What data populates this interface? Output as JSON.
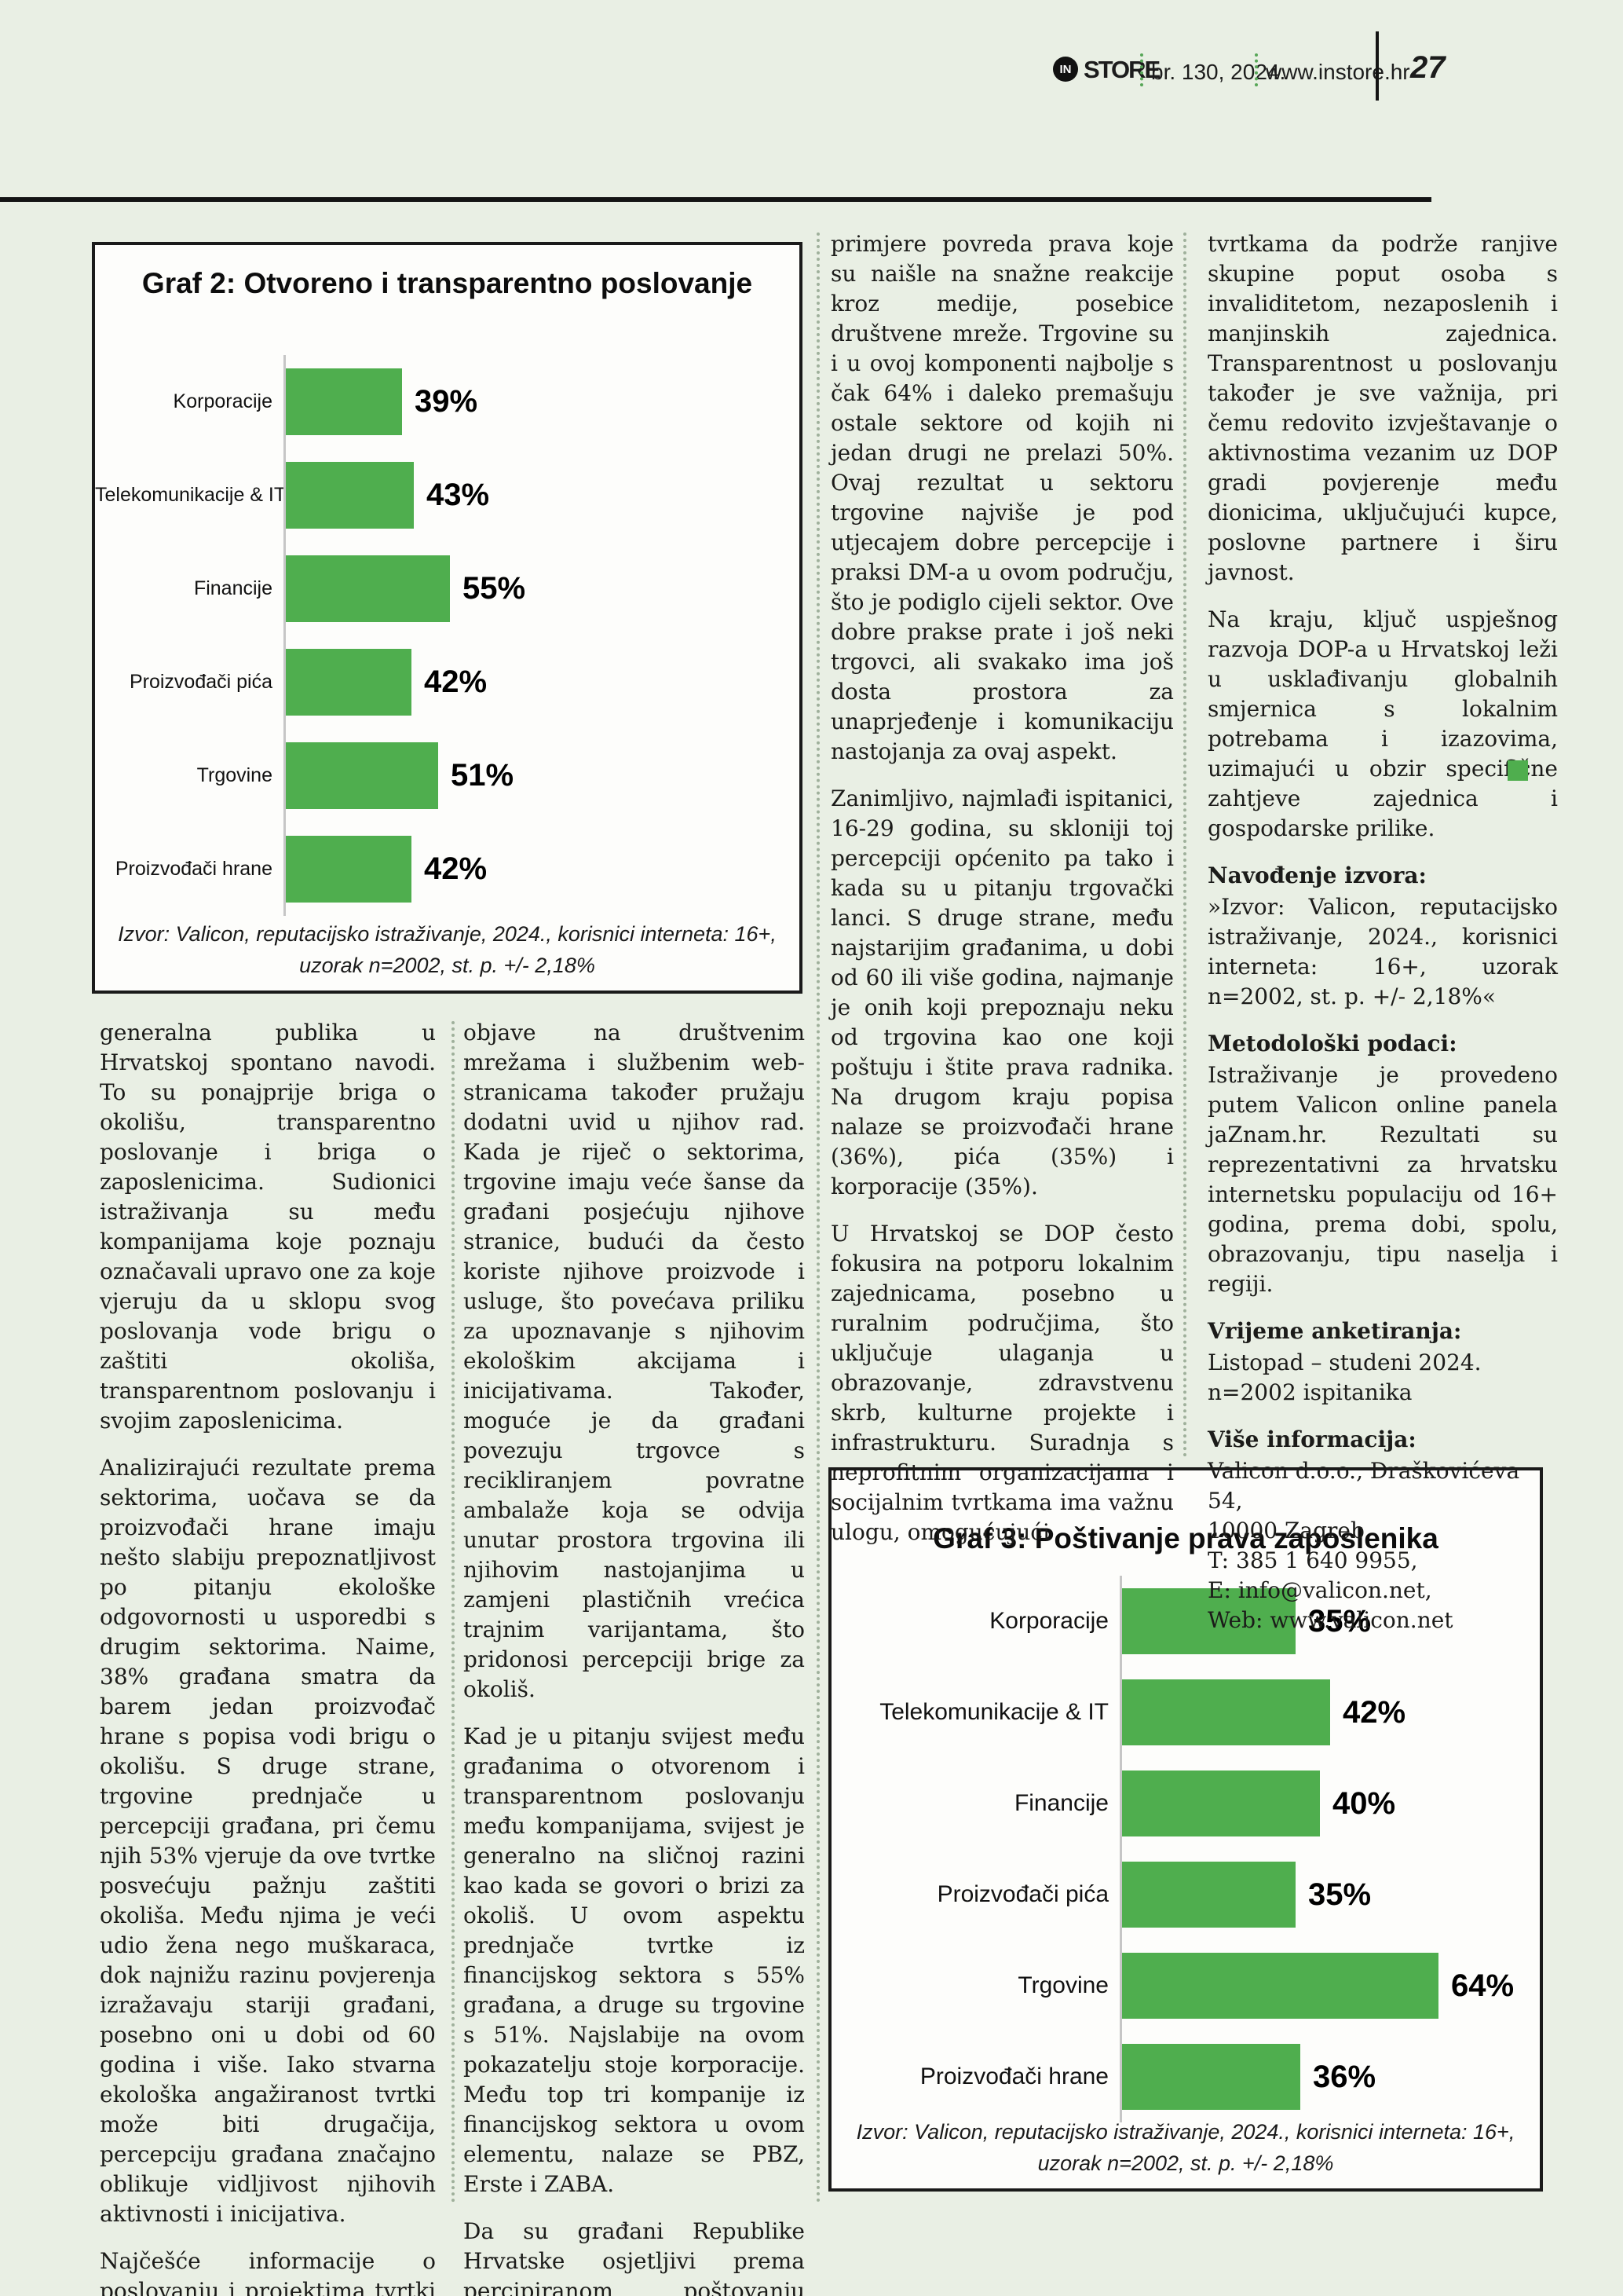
{
  "page": {
    "background": "#e9efe4",
    "accent_green": "#4fae4e",
    "rule_color": "#141414"
  },
  "header": {
    "logo_badge": "IN",
    "logo_text": "STORE",
    "issue": "br. 130, 2024.",
    "website": "www.instore.hr",
    "page_number": "27"
  },
  "charts": [
    {
      "title": "Graf 2: Otvoreno i transparentno poslovanje",
      "categories": [
        "Korporacije",
        "Telekomunikacije & IT",
        "Financije",
        "Proizvođači pića",
        "Trgovine",
        "Proizvođači hrane"
      ],
      "values": [
        39,
        43,
        55,
        42,
        51,
        42
      ],
      "labels": [
        "39%",
        "43%",
        "55%",
        "42%",
        "51%",
        "42%"
      ],
      "source": [
        "Izvor: Valicon, reputacijsko istraživanje, 2024., korisnici interneta: 16+,",
        "uzorak n=2002, st. p. +/- 2,18%"
      ]
    },
    {
      "title": "Graf 3: Poštivanje prava zaposlenika",
      "categories": [
        "Korporacije",
        "Telekomunikacije & IT",
        "Financije",
        "Proizvođači pića",
        "Trgovine",
        "Proizvođači hrane"
      ],
      "values": [
        35,
        42,
        40,
        35,
        64,
        36
      ],
      "labels": [
        "35%",
        "42%",
        "40%",
        "35%",
        "64%",
        "36%"
      ],
      "source": [
        "Izvor: Valicon, reputacijsko istraživanje, 2024., korisnici interneta: 16+,",
        "uzorak n=2002, st. p. +/- 2,18%"
      ]
    }
  ],
  "chart_data": [
    {
      "type": "bar",
      "orientation": "horizontal",
      "title": "Graf 2: Otvoreno i transparentno poslovanje",
      "categories": [
        "Korporacije",
        "Telekomunikacije & IT",
        "Financije",
        "Proizvođači pića",
        "Trgovine",
        "Proizvođači hrane"
      ],
      "values": [
        39,
        43,
        55,
        42,
        51,
        42
      ],
      "unit": "%",
      "bar_color": "#4fae4e",
      "grid": false,
      "source": "Izvor: Valicon, reputacijsko istraživanje, 2024., korisnici interneta: 16+, uzorak n=2002, st. p. +/- 2,18%"
    },
    {
      "type": "bar",
      "orientation": "horizontal",
      "title": "Graf 3: Poštivanje prava zaposlenika",
      "categories": [
        "Korporacije",
        "Telekomunikacije & IT",
        "Financije",
        "Proizvođači pića",
        "Trgovine",
        "Proizvođači hrane"
      ],
      "values": [
        35,
        42,
        40,
        35,
        64,
        36
      ],
      "unit": "%",
      "bar_color": "#4fae4e",
      "grid": false,
      "source": "Izvor: Valicon, reputacijsko istraživanje, 2024., korisnici interneta: 16+, uzorak n=2002, st. p. +/- 2,18%"
    }
  ],
  "article": {
    "columns": [
      {
        "blocks": [
          {
            "text": "generalna publika u Hrvatskoj spontano navodi. To su ponajprije briga o okolišu, transparentno poslovanje i briga o zaposlenicima. Sudionici istraživanja su među kompanijama koje poznaju označavali upravo one za koje vjeruju da u sklopu svog poslovanja vode brigu o zaštiti okoliša, transparentnom poslovanju i svojim zaposlenicima."
          },
          {
            "text": "Analizirajući rezultate prema sektorima, uočava se da proizvođači hrane imaju nešto slabiju prepoznatljivost po pitanju ekološke odgovornosti u usporedbi s drugim sektorima. Naime, 38% građana smatra da barem jedan proizvođač hrane s popisa vodi brigu o okolišu. S druge strane, trgovine prednjače u percepciji građana, pri čemu njih 53% vjeruje da ove tvrtke posvećuju pažnju zaštiti okoliša. Među njima je veći udio žena nego muškaraca, dok najnižu razinu povjerenja izražavaju stariji građani, posebno oni u dobi od 60 godina i više. Iako stvarna ekološka angažiranost tvrtki može biti drugačija, percepciju građana značajno oblikuje vidljivost njihovih aktivnosti i inicijativa."
          },
          {
            "text": "Najčešće informacije o poslovanju i projektima tvrtki građani dobivaju putem medija, dok"
          }
        ]
      },
      {
        "blocks": [
          {
            "text": "objave na društvenim mrežama i službenim web-stranicama također pružaju dodatni uvid u njihov rad. Kada je riječ o sektorima, trgovine imaju veće šanse da građani posjećuju njihove stranice, budući da često koriste njihove proizvode i usluge, što povećava priliku za upoznavanje s njihovim ekološkim akcijama i inicijativama. Također, moguće je da građani povezuju trgovce s recikliranjem povratne ambalaže koja se odvija unutar prostora trgovina ili njihovim nastojanjima u zamjeni plastičnih vrećica trajnim varijantama, što pridonosi percepciji brige za okoliš."
          },
          {
            "text": "Kad je u pitanju svijest među građanima o otvorenom i transparentnom poslovanju među kompanijama, svijest je generalno na sličnoj razini kao kada se govori o brizi za okoliš. U ovom aspektu prednjače tvrtke iz financijskog sektora s 55% građana, a druge su trgovine s 51%. Najslabije na ovom pokazatelju stoje korporacije. Među top tri kompanije iz financijskog sektora u ovom elementu, nalaze se PBZ, Erste i ZABA."
          },
          {
            "text": "Da su građani Republike Hrvatske osjetljivi prema percipiranom poštovanju prava zaposlenika, vidjelo se kroz pojedine"
          }
        ]
      },
      {
        "blocks": [
          {
            "text": "primjere povreda prava koje su naišle na snažne reakcije kroz medije, posebice društvene mreže. Trgovine su i u ovoj komponenti najbolje s čak 64% i daleko premašuju ostale sektore od kojih ni jedan drugi ne prelazi 50%. Ovaj rezultat u sektoru trgovine najviše je pod utjecajem dobre percepcije i praksi DM-a u ovom području, što je podiglo cijeli sektor. Ove dobre prakse prate i još neki trgovci, ali svakako ima još dosta prostora za unaprjeđenje i komunikaciju nastojanja za ovaj aspekt."
          },
          {
            "text": "Zanimljivo, najmlađi ispitanici, 16-29 godina, su skloniji toj percepciji općenito pa tako i kada su u pitanju trgovački lanci. S druge strane, među najstarijim građanima, u dobi od 60 ili više godina, najmanje je onih koji prepoznaju neku od trgovina kao one koji poštuju i štite prava radnika. Na drugom kraju popisa nalaze se proizvođači hrane (36%), pića (35%) i korporacije (35%)."
          },
          {
            "text": "U Hrvatskoj se DOP često fokusira na potporu lokalnim zajednicama, posebno u ruralnim područjima, što uključuje ulaganja u obrazovanje, zdravstvenu skrb, kulturne projekte i infrastrukturu. Suradnja s neprofitnim organizacijama i socijalnim tvrtkama ima važnu ulogu, omogućujući"
          }
        ]
      },
      {
        "blocks": [
          {
            "text": "tvrtkama da podrže ranjive skupine poput osoba s invaliditetom, nezaposlenih i manjinskih zajednica. Transparentnost u poslovanju također je sve važnija, pri čemu redovito izvještavanje o aktivnostima vezanim uz DOP gradi povjerenje među dionicima, uključujući kupce, poslovne partnere i širu javnost."
          },
          {
            "text": "Na kraju, ključ uspješnog razvoja DOP-a u Hrvatskoj leži u usklađivanju globalnih smjernica s lokalnim potrebama i izazovima, uzimajući u obzir specifične zahtjeve zajednica i gospodarske prilike."
          },
          {
            "text": "Navođenje izvora:"
          },
          {
            "text": "»Izvor: Valicon, reputacijsko istraživanje, 2024., korisnici interneta: 16+, uzorak n=2002, st. p. +/- 2,18%«"
          },
          {
            "text": "Metodološki podaci:"
          },
          {
            "text": "Istraživanje je provedeno putem Valicon online panela jaZnam.hr. Rezultati su reprezentativni za hrvatsku internetsku populaciju od 16+ godina, prema dobi, spolu, obrazovanju, tipu naselja i regiji."
          },
          {
            "text": "Vrijeme anketiranja:"
          },
          {
            "text": "Listopad – studeni 2024.\nn=2002 ispitanika"
          },
          {
            "text": "Više informacija:"
          },
          {
            "text": "Valicon d.o.o., Draškovićeva 54,\n10000 Zagreb\nT: 385 1 640 9955,\nE: info@valicon.net,\nWeb: www.valicon.net"
          }
        ]
      }
    ]
  }
}
